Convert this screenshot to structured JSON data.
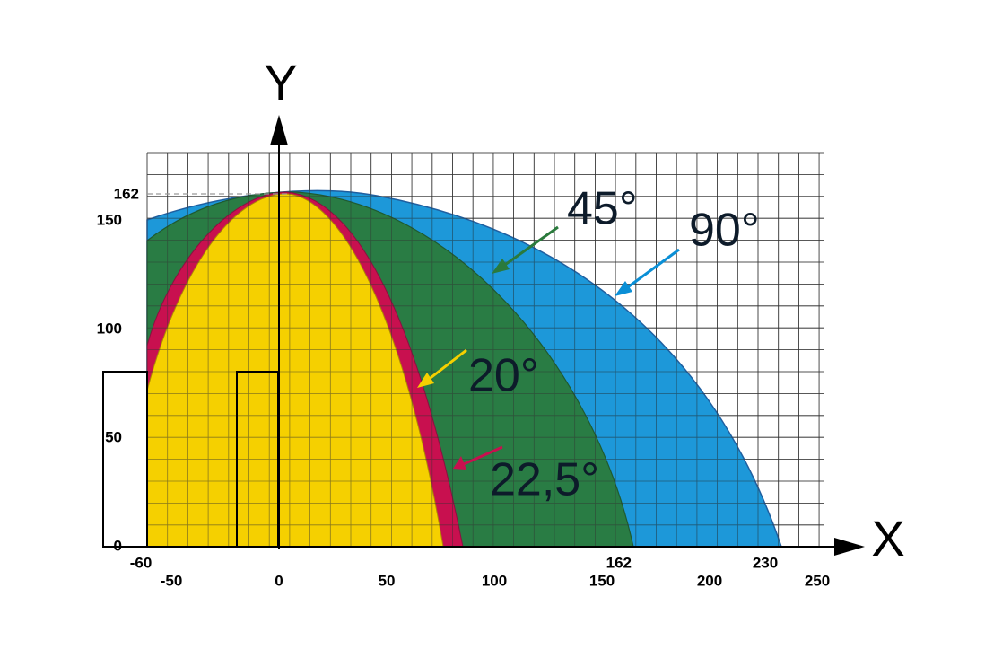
{
  "axes": {
    "y_label": "Y",
    "x_label": "X",
    "x_ticks": [
      -50,
      0,
      50,
      100,
      150,
      200,
      250
    ],
    "y_ticks": [
      0,
      50,
      100,
      150
    ],
    "x_marks": [
      -60,
      162,
      230
    ],
    "y_marks": [
      162
    ]
  },
  "angles": [
    "45°",
    "90°",
    "20°",
    "22,5°"
  ]
}
